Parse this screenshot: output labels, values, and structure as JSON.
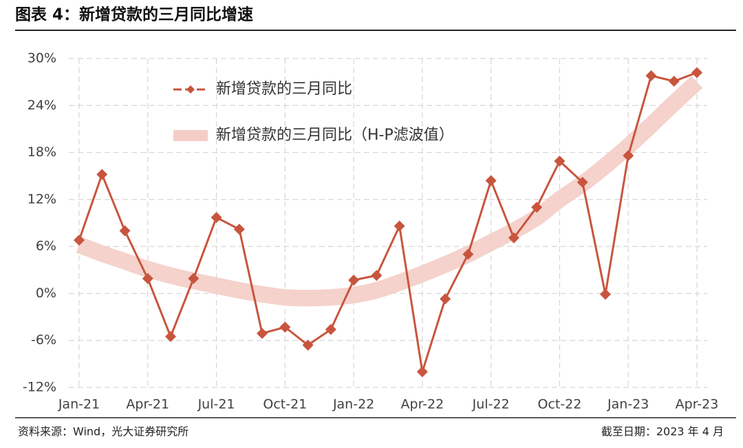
{
  "chart_data": {
    "type": "line",
    "title": "图表 4：新增贷款的三月同比增速",
    "source": "资料来源：Wind，光大证券研究所",
    "date_note": "截至日期：2023 年 4 月",
    "categories": [
      "Jan-21",
      null,
      null,
      "Apr-21",
      null,
      null,
      "Jul-21",
      null,
      null,
      "Oct-21",
      null,
      null,
      "Jan-22",
      null,
      null,
      "Apr-22",
      null,
      null,
      "Jul-22",
      null,
      null,
      "Oct-22",
      null,
      null,
      "Jan-23",
      null,
      null,
      "Apr-23"
    ],
    "series": [
      {
        "name": "新增贷款的三月同比",
        "color": "#c8553d",
        "style": "line-markers",
        "values": [
          6.8,
          15.2,
          8.0,
          1.9,
          -5.5,
          1.9,
          9.7,
          8.2,
          -5.1,
          -4.3,
          -6.6,
          -4.6,
          1.7,
          2.3,
          8.6,
          -10.0,
          -0.7,
          5.0,
          14.4,
          7.1,
          11.0,
          16.9,
          14.2,
          -0.1,
          17.6,
          27.8,
          27.1,
          28.2
        ]
      },
      {
        "name": "新增贷款的三月同比（H-P滤波值）",
        "color": "#f4cdc7",
        "style": "band",
        "values": [
          6.2,
          5.1,
          4.1,
          3.1,
          2.3,
          1.6,
          1.0,
          0.4,
          -0.1,
          -0.5,
          -0.6,
          -0.5,
          -0.2,
          0.4,
          1.4,
          2.5,
          3.7,
          5.0,
          6.5,
          8.0,
          9.7,
          12.0,
          14.0,
          16.3,
          18.8,
          21.5,
          24.3,
          27.0
        ]
      }
    ],
    "ylim": [
      -12,
      30
    ],
    "yticks": [
      {
        "value": -12,
        "label": "-12%"
      },
      {
        "value": -6,
        "label": "-6%"
      },
      {
        "value": 0,
        "label": "0%"
      },
      {
        "value": 6,
        "label": "6%"
      },
      {
        "value": 12,
        "label": "12%"
      },
      {
        "value": 18,
        "label": "18%"
      },
      {
        "value": 24,
        "label": "24%"
      },
      {
        "value": 30,
        "label": "30%"
      }
    ],
    "grid": true
  }
}
